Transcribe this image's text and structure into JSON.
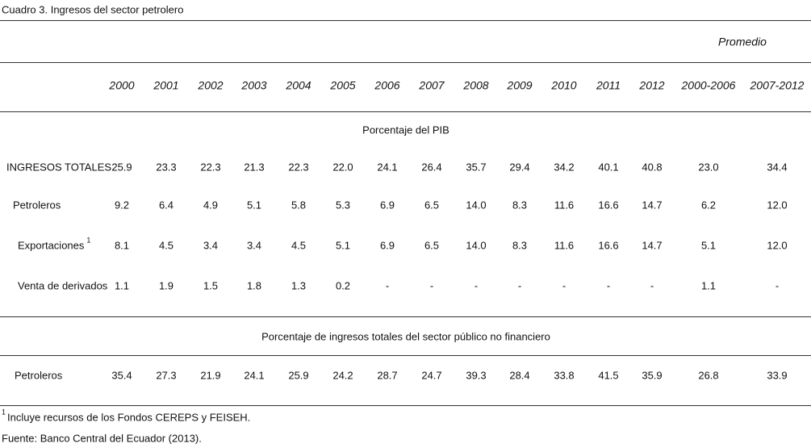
{
  "caption": "Cuadro 3. Ingresos del sector petrolero",
  "table": {
    "group_header": "Promedio",
    "columns": [
      "2000",
      "2001",
      "2002",
      "2003",
      "2004",
      "2005",
      "2006",
      "2007",
      "2008",
      "2009",
      "2010",
      "2011",
      "2012",
      "2000-2006",
      "2007-2012"
    ],
    "sections": [
      {
        "title": "Porcentaje del PIB",
        "rows": [
          {
            "label": "INGRESOS TOTALES",
            "cells": [
              "25.9",
              "23.3",
              "22.3",
              "21.3",
              "22.3",
              "22.0",
              "24.1",
              "26.4",
              "35.7",
              "29.4",
              "34.2",
              "40.1",
              "40.8",
              "23.0",
              "34.4"
            ]
          },
          {
            "label": "Petroleros",
            "cells": [
              "9.2",
              "6.4",
              "4.9",
              "5.1",
              "5.8",
              "5.3",
              "6.9",
              "6.5",
              "14.0",
              "8.3",
              "11.6",
              "16.6",
              "14.7",
              "6.2",
              "12.0"
            ]
          },
          {
            "label": "Exportaciones",
            "note": "1",
            "cells": [
              "8.1",
              "4.5",
              "3.4",
              "3.4",
              "4.5",
              "5.1",
              "6.9",
              "6.5",
              "14.0",
              "8.3",
              "11.6",
              "16.6",
              "14.7",
              "5.1",
              "12.0"
            ]
          },
          {
            "label": "Venta de derivados",
            "cells": [
              "1.1",
              "1.9",
              "1.5",
              "1.8",
              "1.3",
              "0.2",
              "-",
              "-",
              "-",
              "-",
              "-",
              "-",
              "-",
              "1.1",
              "-"
            ]
          }
        ]
      },
      {
        "title": "Porcentaje de ingresos totales del sector público no financiero",
        "rows": [
          {
            "label": "Petroleros",
            "cells": [
              "35.4",
              "27.3",
              "21.9",
              "24.1",
              "25.9",
              "24.2",
              "28.7",
              "24.7",
              "39.3",
              "28.4",
              "33.8",
              "41.5",
              "35.9",
              "26.8",
              "33.9"
            ]
          }
        ]
      }
    ]
  },
  "footnote": {
    "marker": "1",
    "text": "Incluye recursos de los Fondos CEREPS y FEISEH."
  },
  "source": "Fuente: Banco Central del Ecuador (2013)."
}
